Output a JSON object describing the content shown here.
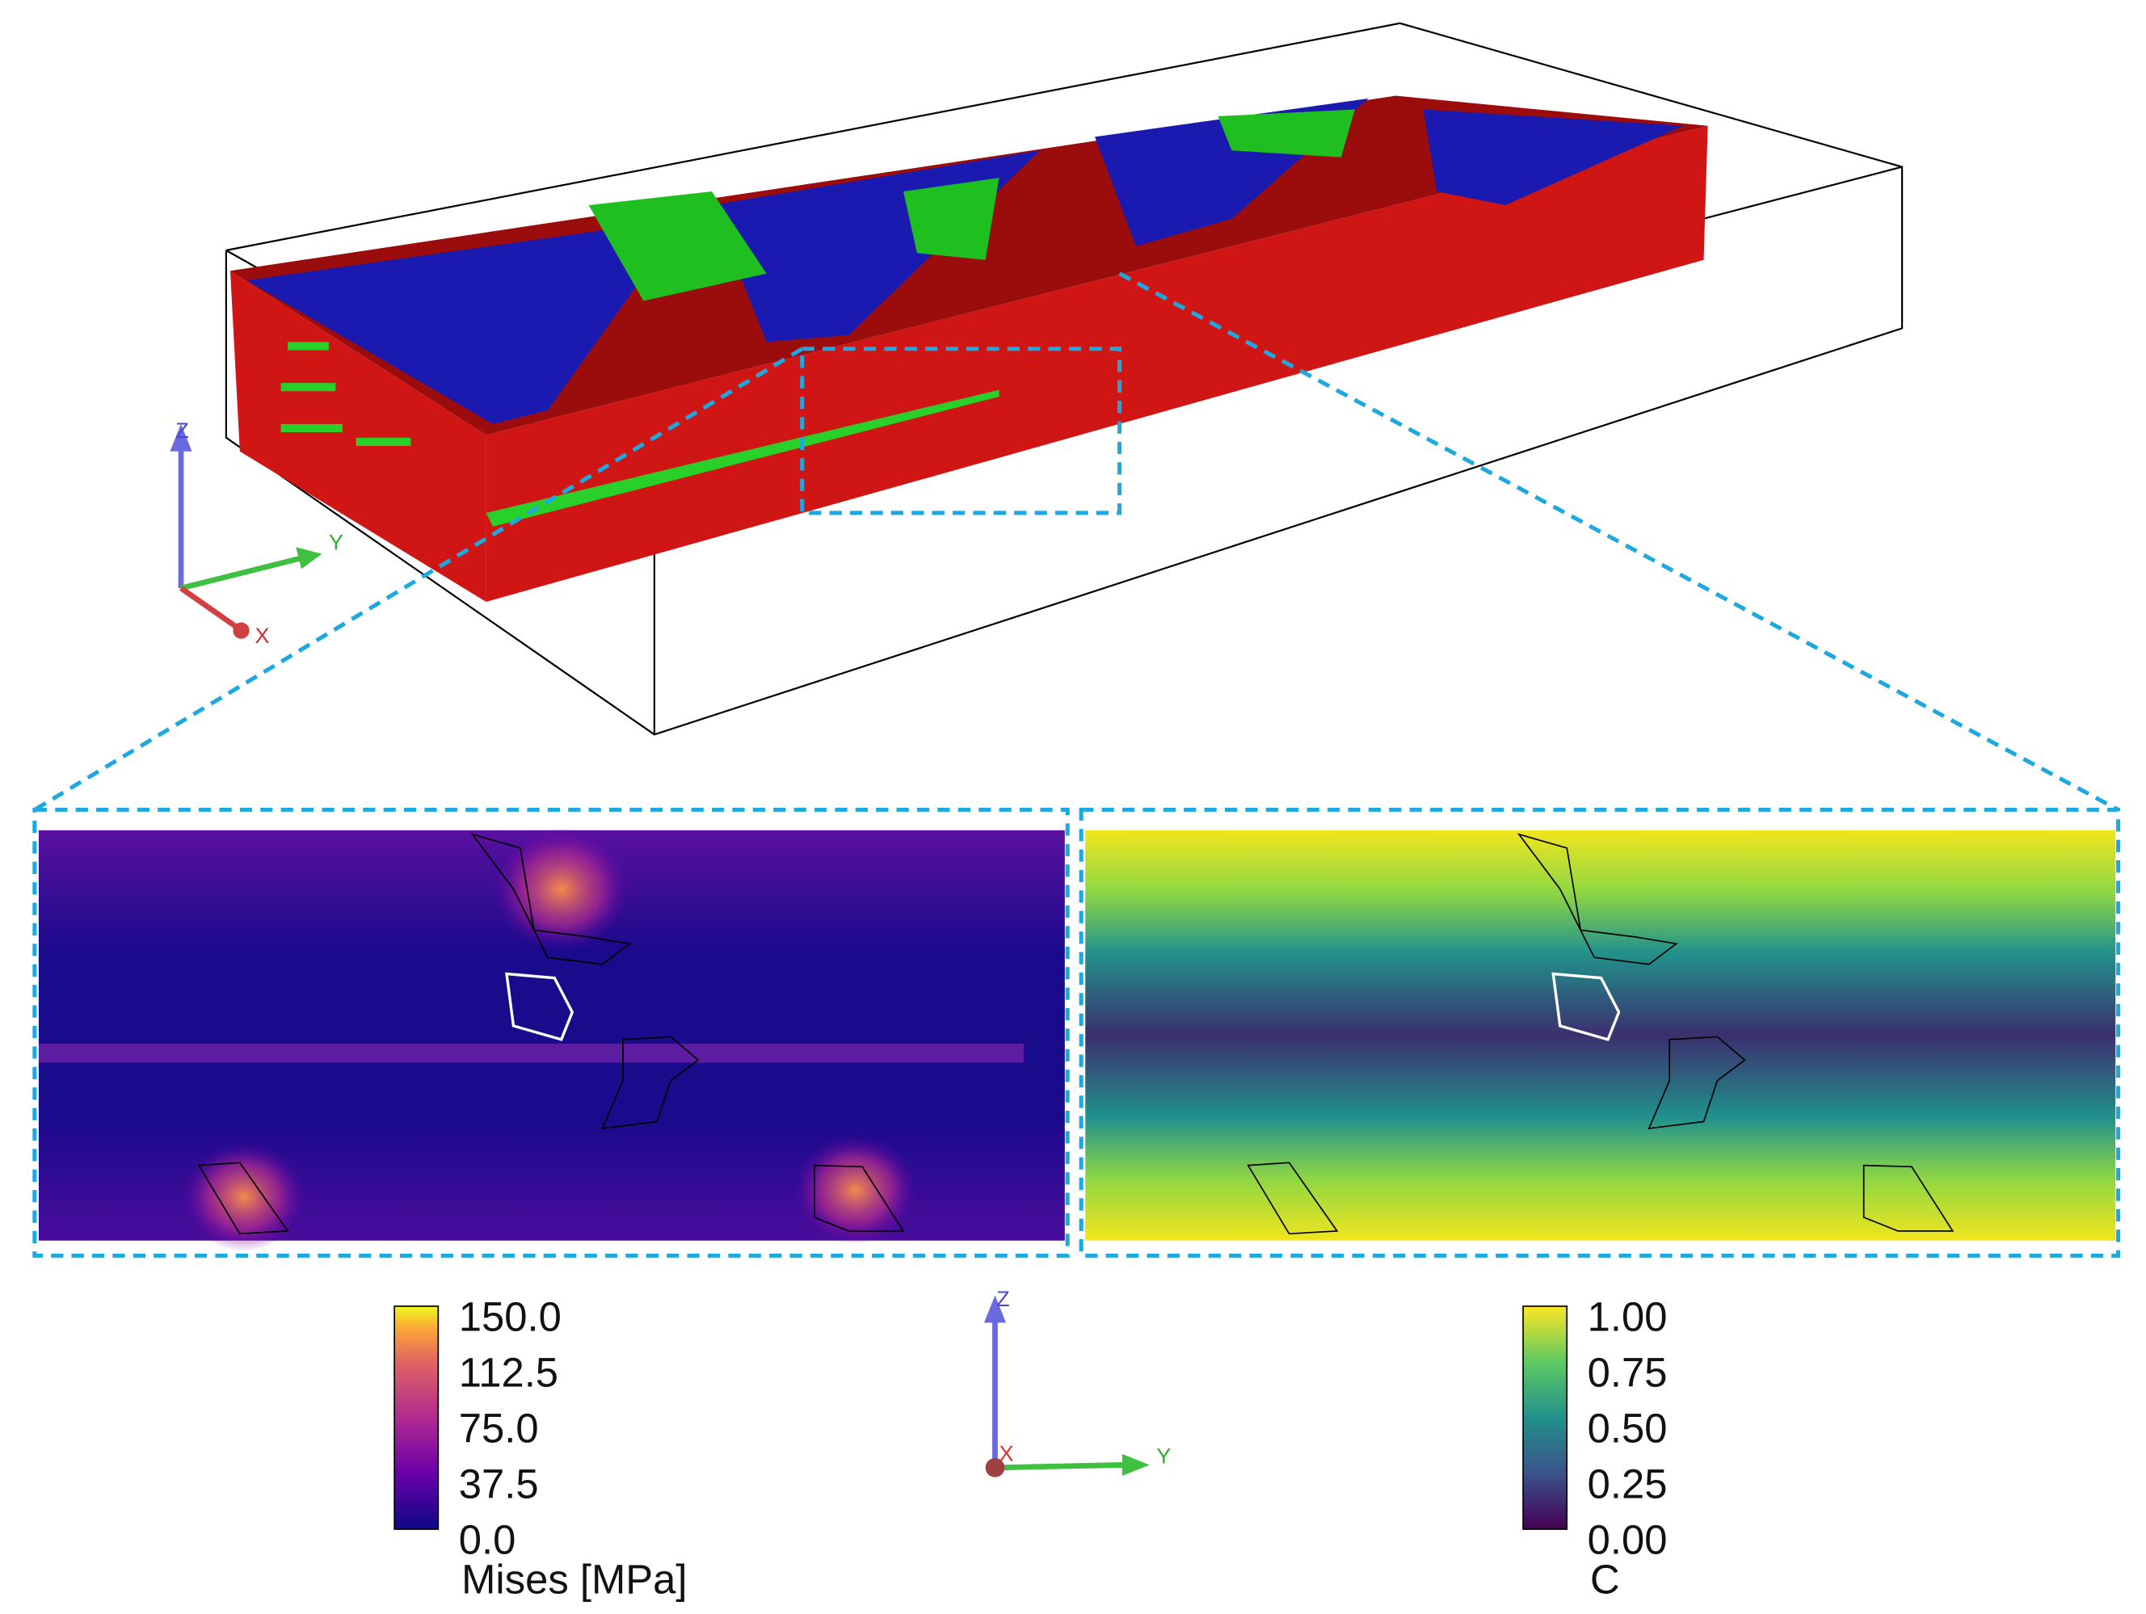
{
  "figure": {
    "top_axes": {
      "z": "Z",
      "y": "Y",
      "x": "X"
    },
    "bottom_axes": {
      "z": "Z",
      "y": "Y",
      "x": "X"
    },
    "colorbars": [
      {
        "ticks": [
          "150.0",
          "112.5",
          "75.0",
          "37.5",
          "0.0"
        ],
        "label": "Mises [MPa]"
      },
      {
        "ticks": [
          "1.00",
          "0.75",
          "0.50",
          "0.25",
          "0.00"
        ],
        "label": "C"
      }
    ]
  }
}
